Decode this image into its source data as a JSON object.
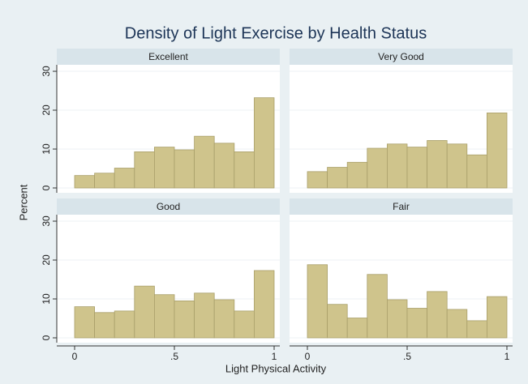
{
  "title": "Density of Light Exercise by Health Status",
  "x_label": "Light Physical Activity",
  "y_label": "Percent",
  "chart_data": [
    {
      "type": "histogram",
      "title": "Excellent",
      "bins": [
        0,
        0.1,
        0.2,
        0.3,
        0.4,
        0.5,
        0.6,
        0.7,
        0.8,
        0.9,
        1
      ],
      "values": [
        3.2,
        3.8,
        5.1,
        9.3,
        10.5,
        9.8,
        13.3,
        11.5,
        9.3,
        23.2
      ],
      "color": "#cfc48c",
      "xlim": [
        0,
        1
      ],
      "ylim": [
        0,
        30
      ],
      "xticks": [
        0,
        {
          "value": 0.5,
          "label": ".5"
        },
        1
      ],
      "yticks": [
        0,
        10,
        20,
        30
      ],
      "grid": true
    },
    {
      "type": "histogram",
      "title": "Very Good",
      "bins": [
        0,
        0.1,
        0.2,
        0.3,
        0.4,
        0.5,
        0.6,
        0.7,
        0.8,
        0.9,
        1
      ],
      "values": [
        4.2,
        5.3,
        6.6,
        10.2,
        11.3,
        10.5,
        12.2,
        11.3,
        8.5,
        19.3
      ],
      "color": "#cfc48c",
      "xlim": [
        0,
        1
      ],
      "ylim": [
        0,
        30
      ],
      "xticks": [
        0,
        {
          "value": 0.5,
          "label": ".5"
        },
        1
      ],
      "yticks": [
        0,
        10,
        20,
        30
      ],
      "grid": true
    },
    {
      "type": "histogram",
      "title": "Good",
      "bins": [
        0,
        0.1,
        0.2,
        0.3,
        0.4,
        0.5,
        0.6,
        0.7,
        0.8,
        0.9,
        1
      ],
      "values": [
        8.0,
        6.5,
        6.9,
        13.3,
        11.1,
        9.5,
        11.5,
        9.8,
        6.9,
        17.3
      ],
      "color": "#cfc48c",
      "xlim": [
        0,
        1
      ],
      "ylim": [
        0,
        30
      ],
      "xticks": [
        0,
        {
          "value": 0.5,
          "label": ".5"
        },
        1
      ],
      "yticks": [
        0,
        10,
        20,
        30
      ],
      "grid": true
    },
    {
      "type": "histogram",
      "title": "Fair",
      "bins": [
        0,
        0.1,
        0.2,
        0.3,
        0.4,
        0.5,
        0.6,
        0.7,
        0.8,
        0.9,
        1
      ],
      "values": [
        18.8,
        8.6,
        5.1,
        16.3,
        9.8,
        7.6,
        11.9,
        7.3,
        4.4,
        10.6
      ],
      "color": "#cfc48c",
      "xlim": [
        0,
        1
      ],
      "ylim": [
        0,
        30
      ],
      "xticks": [
        0,
        {
          "value": 0.5,
          "label": ".5"
        },
        1
      ],
      "yticks": [
        0,
        10,
        20,
        30
      ],
      "grid": true
    }
  ]
}
